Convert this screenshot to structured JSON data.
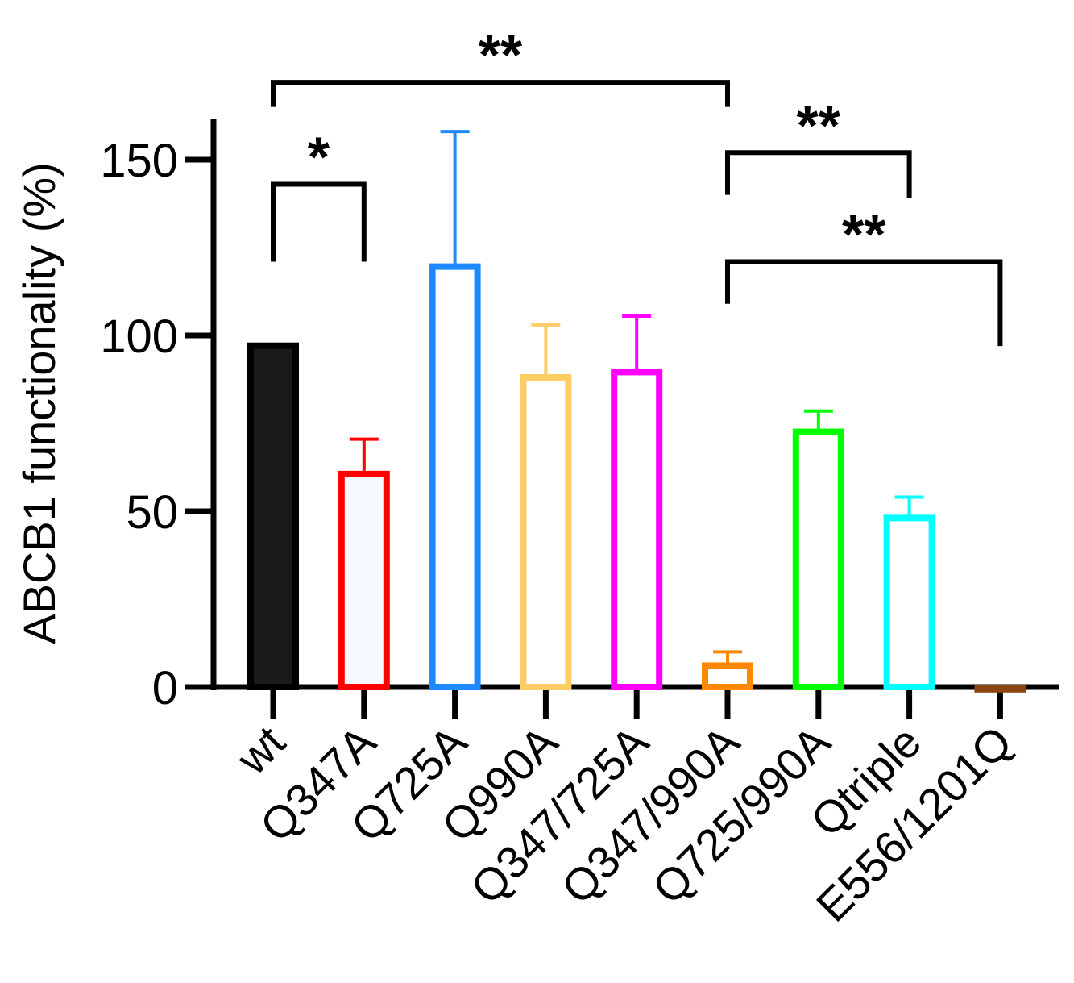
{
  "chart_data": {
    "type": "bar",
    "ylabel": "ABCB1 functionality (%)",
    "xlabel": "",
    "ylim": [
      0,
      160
    ],
    "yticks": [
      0,
      50,
      100,
      150
    ],
    "grid": false,
    "categories": [
      "wt",
      "Q347A",
      "Q725A",
      "Q990A",
      "Q347/725A",
      "Q347/990A",
      "Q725/990A",
      "Qtriple",
      "E556/1201Q"
    ],
    "values": [
      98,
      61.5,
      120.5,
      89,
      90.5,
      7,
      73.5,
      49,
      0.5
    ],
    "errors": [
      0,
      9,
      37.5,
      14,
      15,
      3,
      5,
      5,
      0
    ],
    "colors": [
      "#000000",
      "#ff0000",
      "#1e88ff",
      "#ffcc66",
      "#ff00ff",
      "#ff8800",
      "#00ff00",
      "#00ffff",
      "#8b4513"
    ],
    "fills": [
      "#1a1a1a",
      "#f5f9ff",
      "#ffffff",
      "#ffffff",
      "#ffffff",
      "#ffffff",
      "#ffffff",
      "#ffffff",
      "#ffffff"
    ],
    "annotations": [
      {
        "from": 0,
        "to": 5,
        "label": "**",
        "level": 172,
        "drop_left": 165,
        "drop_right": 165
      },
      {
        "from": 0,
        "to": 1,
        "label": "*",
        "level": 143,
        "drop_left": 121,
        "drop_right": 121
      },
      {
        "from": 5,
        "to": 7,
        "label": "**",
        "level": 152,
        "drop_left": 140,
        "drop_right": 139
      },
      {
        "from": 5,
        "to": 8,
        "label": "**",
        "level": 121,
        "drop_left": 109,
        "drop_right": 97
      }
    ]
  }
}
